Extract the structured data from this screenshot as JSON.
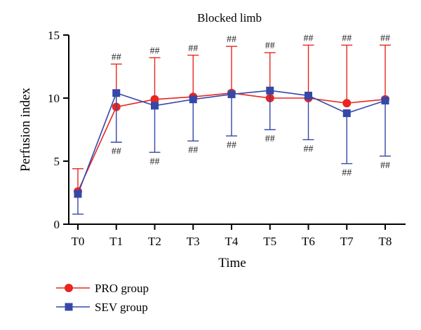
{
  "chart_data": {
    "type": "line",
    "title": "Blocked limb",
    "xlabel": "Time",
    "ylabel": "Perfusion index",
    "categories": [
      "T0",
      "T1",
      "T2",
      "T3",
      "T4",
      "T5",
      "T6",
      "T7",
      "T8"
    ],
    "ylim": [
      0,
      15
    ],
    "yticks": [
      0,
      5,
      10,
      15
    ],
    "grid": false,
    "legend_position": "bottom-left",
    "significance_marker": "##",
    "series": [
      {
        "name": "PRO group",
        "color": "#e8261f",
        "marker": "circle",
        "error_direction": "up",
        "values": [
          2.6,
          9.3,
          9.9,
          10.1,
          10.4,
          10.0,
          10.0,
          9.6,
          9.9
        ],
        "error": [
          1.8,
          3.4,
          3.3,
          3.3,
          3.7,
          3.6,
          4.2,
          4.6,
          4.3
        ],
        "significant": [
          false,
          true,
          true,
          true,
          true,
          true,
          true,
          true,
          true
        ]
      },
      {
        "name": "SEV group",
        "color": "#3548a8",
        "marker": "square",
        "error_direction": "down",
        "values": [
          2.4,
          10.4,
          9.4,
          9.9,
          10.3,
          10.6,
          10.2,
          8.8,
          9.8
        ],
        "error": [
          1.6,
          3.9,
          3.7,
          3.3,
          3.3,
          3.1,
          3.5,
          4.0,
          4.4
        ],
        "significant": [
          false,
          true,
          true,
          true,
          true,
          true,
          true,
          true,
          true
        ]
      }
    ]
  }
}
